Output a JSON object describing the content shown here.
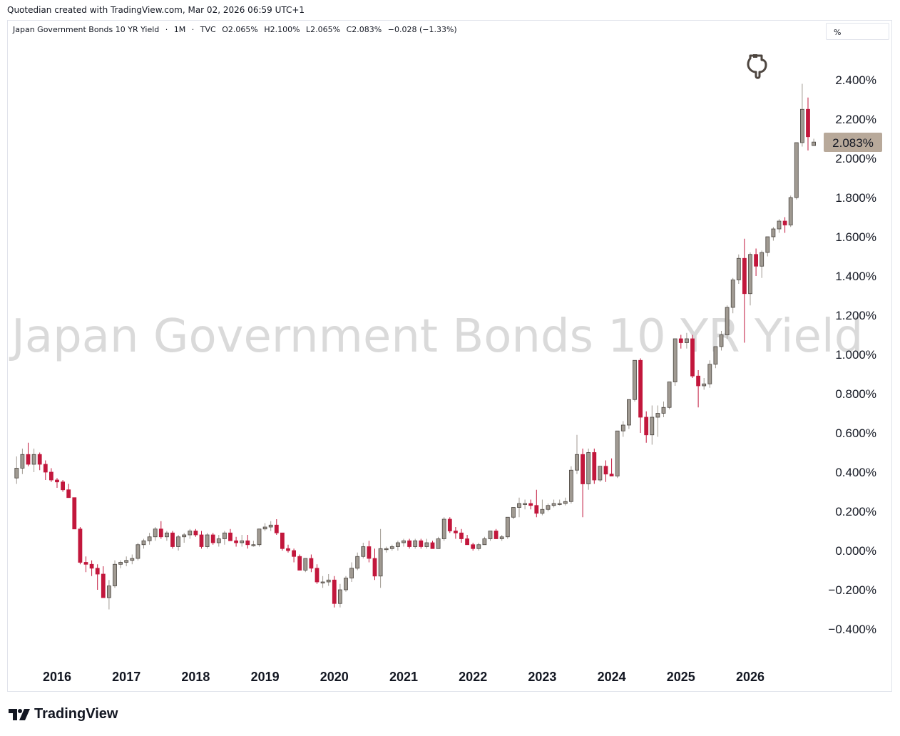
{
  "header": {
    "caption": "Quotedian created with TradingView.com, Mar 02, 2026 06:59 UTC+1"
  },
  "legend": {
    "symbol": "Japan Government Bonds 10 YR Yield",
    "interval": "1M",
    "source": "TVC",
    "open": "O2.065%",
    "high": "H2.100%",
    "low": "L2.065%",
    "close": "C2.083%",
    "change": "−0.028 (−1.33%)"
  },
  "unit_selector": {
    "label": "%"
  },
  "watermark": {
    "text": "Japan Government Bonds 10 YR Yield"
  },
  "price_label": {
    "text": "2.083%",
    "color": "#b8a99a"
  },
  "brand": {
    "name": "TradingView"
  },
  "colors": {
    "up": "#a09a92",
    "down": "#c2173c",
    "axis_text": "#131722"
  },
  "chart_data": {
    "type": "candlestick",
    "title": "Japan Government Bonds 10 YR Yield",
    "interval": "1M",
    "y_unit": "%",
    "ylim": [
      -0.5,
      2.6
    ],
    "y_ticks": [
      -0.4,
      -0.2,
      0.0,
      0.2,
      0.4,
      0.6,
      0.8,
      1.0,
      1.2,
      1.4,
      1.6,
      1.8,
      2.0,
      2.2,
      2.4
    ],
    "y_tick_labels": [
      "−0.400%",
      "−0.200%",
      "0.000%",
      "0.200%",
      "0.400%",
      "0.600%",
      "0.800%",
      "1.000%",
      "1.200%",
      "1.400%",
      "1.600%",
      "1.800%",
      "2.000%",
      "2.200%",
      "2.400%"
    ],
    "x_ticks": [
      "2016",
      "2017",
      "2018",
      "2019",
      "2020",
      "2021",
      "2022",
      "2023",
      "2024",
      "2025",
      "2026"
    ],
    "last_value": 2.083,
    "candles": [
      {
        "d": "2015-06",
        "o": 0.37,
        "h": 0.48,
        "l": 0.34,
        "c": 0.42
      },
      {
        "d": "2015-07",
        "o": 0.42,
        "h": 0.52,
        "l": 0.39,
        "c": 0.49
      },
      {
        "d": "2015-08",
        "o": 0.49,
        "h": 0.55,
        "l": 0.43,
        "c": 0.44
      },
      {
        "d": "2015-09",
        "o": 0.44,
        "h": 0.52,
        "l": 0.4,
        "c": 0.49
      },
      {
        "d": "2015-10",
        "o": 0.49,
        "h": 0.5,
        "l": 0.41,
        "c": 0.44
      },
      {
        "d": "2015-11",
        "o": 0.44,
        "h": 0.46,
        "l": 0.36,
        "c": 0.4
      },
      {
        "d": "2015-12",
        "o": 0.4,
        "h": 0.42,
        "l": 0.35,
        "c": 0.36
      },
      {
        "d": "2016-01",
        "o": 0.36,
        "h": 0.37,
        "l": 0.32,
        "c": 0.35
      },
      {
        "d": "2016-02",
        "o": 0.35,
        "h": 0.36,
        "l": 0.3,
        "c": 0.31
      },
      {
        "d": "2016-03",
        "o": 0.31,
        "h": 0.34,
        "l": 0.27,
        "c": 0.27
      },
      {
        "d": "2016-04",
        "o": 0.27,
        "h": 0.27,
        "l": 0.11,
        "c": 0.11
      },
      {
        "d": "2016-05",
        "o": 0.11,
        "h": 0.12,
        "l": -0.07,
        "c": -0.06
      },
      {
        "d": "2016-06",
        "o": -0.06,
        "h": -0.03,
        "l": -0.11,
        "c": -0.07
      },
      {
        "d": "2016-07",
        "o": -0.07,
        "h": -0.05,
        "l": -0.13,
        "c": -0.09
      },
      {
        "d": "2016-08",
        "o": -0.09,
        "h": -0.07,
        "l": -0.2,
        "c": -0.12
      },
      {
        "d": "2016-09",
        "o": -0.12,
        "h": -0.08,
        "l": -0.24,
        "c": -0.24
      },
      {
        "d": "2016-10",
        "o": -0.24,
        "h": -0.15,
        "l": -0.3,
        "c": -0.18
      },
      {
        "d": "2016-11",
        "o": -0.18,
        "h": -0.05,
        "l": -0.19,
        "c": -0.07
      },
      {
        "d": "2016-12",
        "o": -0.07,
        "h": -0.05,
        "l": -0.09,
        "c": -0.06
      },
      {
        "d": "2017-01",
        "o": -0.06,
        "h": -0.03,
        "l": -0.08,
        "c": -0.05
      },
      {
        "d": "2017-02",
        "o": -0.05,
        "h": -0.02,
        "l": -0.07,
        "c": -0.04
      },
      {
        "d": "2017-03",
        "o": -0.04,
        "h": 0.04,
        "l": -0.05,
        "c": 0.03
      },
      {
        "d": "2017-04",
        "o": 0.03,
        "h": 0.06,
        "l": 0.01,
        "c": 0.05
      },
      {
        "d": "2017-05",
        "o": 0.05,
        "h": 0.09,
        "l": 0.03,
        "c": 0.07
      },
      {
        "d": "2017-06",
        "o": 0.07,
        "h": 0.12,
        "l": 0.05,
        "c": 0.11
      },
      {
        "d": "2017-07",
        "o": 0.11,
        "h": 0.15,
        "l": 0.06,
        "c": 0.07
      },
      {
        "d": "2017-08",
        "o": 0.07,
        "h": 0.1,
        "l": 0.05,
        "c": 0.09
      },
      {
        "d": "2017-09",
        "o": 0.09,
        "h": 0.1,
        "l": 0.01,
        "c": 0.02
      },
      {
        "d": "2017-10",
        "o": 0.02,
        "h": 0.08,
        "l": 0.0,
        "c": 0.07
      },
      {
        "d": "2017-11",
        "o": 0.07,
        "h": 0.09,
        "l": 0.04,
        "c": 0.08
      },
      {
        "d": "2017-12",
        "o": 0.08,
        "h": 0.11,
        "l": 0.06,
        "c": 0.1
      },
      {
        "d": "2018-01",
        "o": 0.1,
        "h": 0.11,
        "l": 0.07,
        "c": 0.08
      },
      {
        "d": "2018-02",
        "o": 0.08,
        "h": 0.1,
        "l": 0.01,
        "c": 0.02
      },
      {
        "d": "2018-03",
        "o": 0.02,
        "h": 0.09,
        "l": 0.01,
        "c": 0.08
      },
      {
        "d": "2018-04",
        "o": 0.08,
        "h": 0.09,
        "l": 0.03,
        "c": 0.04
      },
      {
        "d": "2018-05",
        "o": 0.04,
        "h": 0.08,
        "l": 0.02,
        "c": 0.06
      },
      {
        "d": "2018-06",
        "o": 0.06,
        "h": 0.1,
        "l": 0.03,
        "c": 0.09
      },
      {
        "d": "2018-07",
        "o": 0.09,
        "h": 0.11,
        "l": 0.05,
        "c": 0.05
      },
      {
        "d": "2018-08",
        "o": 0.05,
        "h": 0.07,
        "l": 0.02,
        "c": 0.04
      },
      {
        "d": "2018-09",
        "o": 0.04,
        "h": 0.08,
        "l": 0.02,
        "c": 0.05
      },
      {
        "d": "2018-10",
        "o": 0.05,
        "h": 0.08,
        "l": 0.01,
        "c": 0.03
      },
      {
        "d": "2018-11",
        "o": 0.03,
        "h": 0.05,
        "l": 0.02,
        "c": 0.03
      },
      {
        "d": "2018-12",
        "o": 0.03,
        "h": 0.11,
        "l": 0.02,
        "c": 0.11
      },
      {
        "d": "2019-01",
        "o": 0.11,
        "h": 0.14,
        "l": 0.1,
        "c": 0.12
      },
      {
        "d": "2019-02",
        "o": 0.12,
        "h": 0.15,
        "l": 0.1,
        "c": 0.13
      },
      {
        "d": "2019-03",
        "o": 0.13,
        "h": 0.16,
        "l": 0.08,
        "c": 0.09
      },
      {
        "d": "2019-04",
        "o": 0.09,
        "h": 0.09,
        "l": 0.0,
        "c": 0.01
      },
      {
        "d": "2019-05",
        "o": 0.01,
        "h": 0.03,
        "l": -0.01,
        "c": 0.0
      },
      {
        "d": "2019-06",
        "o": 0.0,
        "h": 0.01,
        "l": -0.06,
        "c": -0.03
      },
      {
        "d": "2019-07",
        "o": -0.03,
        "h": -0.02,
        "l": -0.1,
        "c": -0.1
      },
      {
        "d": "2019-08",
        "o": -0.1,
        "h": -0.04,
        "l": -0.11,
        "c": -0.04
      },
      {
        "d": "2019-09",
        "o": -0.04,
        "h": -0.02,
        "l": -0.11,
        "c": -0.09
      },
      {
        "d": "2019-10",
        "o": -0.09,
        "h": -0.07,
        "l": -0.17,
        "c": -0.16
      },
      {
        "d": "2019-11",
        "o": -0.16,
        "h": -0.13,
        "l": -0.19,
        "c": -0.16
      },
      {
        "d": "2019-12",
        "o": -0.16,
        "h": -0.12,
        "l": -0.18,
        "c": -0.15
      },
      {
        "d": "2020-01",
        "o": -0.15,
        "h": -0.13,
        "l": -0.29,
        "c": -0.27
      },
      {
        "d": "2020-02",
        "o": -0.27,
        "h": -0.17,
        "l": -0.29,
        "c": -0.2
      },
      {
        "d": "2020-03",
        "o": -0.2,
        "h": -0.13,
        "l": -0.21,
        "c": -0.14
      },
      {
        "d": "2020-04",
        "o": -0.14,
        "h": -0.06,
        "l": -0.16,
        "c": -0.09
      },
      {
        "d": "2020-05",
        "o": -0.09,
        "h": -0.01,
        "l": -0.1,
        "c": -0.03
      },
      {
        "d": "2020-06",
        "o": -0.03,
        "h": 0.04,
        "l": -0.04,
        "c": 0.02
      },
      {
        "d": "2020-07",
        "o": 0.02,
        "h": 0.05,
        "l": -0.06,
        "c": -0.04
      },
      {
        "d": "2020-08",
        "o": -0.04,
        "h": 0.01,
        "l": -0.15,
        "c": -0.13
      },
      {
        "d": "2020-09",
        "o": -0.13,
        "h": 0.11,
        "l": -0.19,
        "c": 0.01
      },
      {
        "d": "2020-10",
        "o": 0.01,
        "h": 0.02,
        "l": -0.01,
        "c": 0.01
      },
      {
        "d": "2020-11",
        "o": 0.01,
        "h": 0.03,
        "l": 0.0,
        "c": 0.02
      },
      {
        "d": "2020-12",
        "o": 0.02,
        "h": 0.05,
        "l": 0.0,
        "c": 0.04
      },
      {
        "d": "2021-01",
        "o": 0.04,
        "h": 0.06,
        "l": 0.02,
        "c": 0.05
      },
      {
        "d": "2021-02",
        "o": 0.05,
        "h": 0.06,
        "l": 0.01,
        "c": 0.02
      },
      {
        "d": "2021-03",
        "o": 0.02,
        "h": 0.06,
        "l": 0.01,
        "c": 0.05
      },
      {
        "d": "2021-04",
        "o": 0.05,
        "h": 0.06,
        "l": 0.01,
        "c": 0.02
      },
      {
        "d": "2021-05",
        "o": 0.02,
        "h": 0.06,
        "l": 0.01,
        "c": 0.04
      },
      {
        "d": "2021-06",
        "o": 0.04,
        "h": 0.05,
        "l": 0.01,
        "c": 0.01
      },
      {
        "d": "2021-07",
        "o": 0.01,
        "h": 0.07,
        "l": 0.01,
        "c": 0.06
      },
      {
        "d": "2021-08",
        "o": 0.06,
        "h": 0.17,
        "l": 0.05,
        "c": 0.16
      },
      {
        "d": "2021-09",
        "o": 0.16,
        "h": 0.17,
        "l": 0.09,
        "c": 0.1
      },
      {
        "d": "2021-10",
        "o": 0.1,
        "h": 0.12,
        "l": 0.06,
        "c": 0.09
      },
      {
        "d": "2021-11",
        "o": 0.09,
        "h": 0.11,
        "l": 0.04,
        "c": 0.06
      },
      {
        "d": "2021-12",
        "o": 0.06,
        "h": 0.08,
        "l": 0.03,
        "c": 0.03
      },
      {
        "d": "2022-01",
        "o": 0.03,
        "h": 0.04,
        "l": 0.0,
        "c": 0.01
      },
      {
        "d": "2022-02",
        "o": 0.01,
        "h": 0.04,
        "l": 0.0,
        "c": 0.03
      },
      {
        "d": "2022-03",
        "o": 0.03,
        "h": 0.07,
        "l": 0.03,
        "c": 0.06
      },
      {
        "d": "2022-04",
        "o": 0.06,
        "h": 0.1,
        "l": 0.05,
        "c": 0.1
      },
      {
        "d": "2022-05",
        "o": 0.1,
        "h": 0.11,
        "l": 0.06,
        "c": 0.06
      },
      {
        "d": "2022-06",
        "o": 0.06,
        "h": 0.08,
        "l": 0.05,
        "c": 0.07
      },
      {
        "d": "2022-07",
        "o": 0.07,
        "h": 0.17,
        "l": 0.06,
        "c": 0.17
      },
      {
        "d": "2022-08",
        "o": 0.17,
        "h": 0.22,
        "l": 0.16,
        "c": 0.22
      },
      {
        "d": "2022-09",
        "o": 0.22,
        "h": 0.27,
        "l": 0.17,
        "c": 0.24
      },
      {
        "d": "2022-10",
        "o": 0.24,
        "h": 0.26,
        "l": 0.21,
        "c": 0.24
      },
      {
        "d": "2022-11",
        "o": 0.24,
        "h": 0.26,
        "l": 0.21,
        "c": 0.23
      },
      {
        "d": "2022-12",
        "o": 0.23,
        "h": 0.31,
        "l": 0.17,
        "c": 0.19
      },
      {
        "d": "2023-01",
        "o": 0.19,
        "h": 0.26,
        "l": 0.18,
        "c": 0.21
      },
      {
        "d": "2023-02",
        "o": 0.21,
        "h": 0.24,
        "l": 0.2,
        "c": 0.23
      },
      {
        "d": "2023-03",
        "o": 0.23,
        "h": 0.26,
        "l": 0.22,
        "c": 0.24
      },
      {
        "d": "2023-04",
        "o": 0.24,
        "h": 0.26,
        "l": 0.23,
        "c": 0.24
      },
      {
        "d": "2023-05",
        "o": 0.24,
        "h": 0.27,
        "l": 0.23,
        "c": 0.25
      },
      {
        "d": "2023-06",
        "o": 0.25,
        "h": 0.43,
        "l": 0.24,
        "c": 0.41
      },
      {
        "d": "2023-07",
        "o": 0.41,
        "h": 0.59,
        "l": 0.39,
        "c": 0.49
      },
      {
        "d": "2023-08",
        "o": 0.49,
        "h": 0.52,
        "l": 0.17,
        "c": 0.34
      },
      {
        "d": "2023-09",
        "o": 0.34,
        "h": 0.52,
        "l": 0.31,
        "c": 0.5
      },
      {
        "d": "2023-10",
        "o": 0.5,
        "h": 0.52,
        "l": 0.34,
        "c": 0.36
      },
      {
        "d": "2023-11",
        "o": 0.36,
        "h": 0.43,
        "l": 0.35,
        "c": 0.43
      },
      {
        "d": "2023-12",
        "o": 0.43,
        "h": 0.46,
        "l": 0.35,
        "c": 0.39
      },
      {
        "d": "2024-01",
        "o": 0.39,
        "h": 0.47,
        "l": 0.38,
        "c": 0.38
      },
      {
        "d": "2024-02",
        "o": 0.38,
        "h": 0.61,
        "l": 0.37,
        "c": 0.61
      },
      {
        "d": "2024-03",
        "o": 0.61,
        "h": 0.66,
        "l": 0.58,
        "c": 0.64
      },
      {
        "d": "2024-04",
        "o": 0.64,
        "h": 0.77,
        "l": 0.62,
        "c": 0.77
      },
      {
        "d": "2024-05",
        "o": 0.77,
        "h": 0.97,
        "l": 0.76,
        "c": 0.97
      },
      {
        "d": "2024-06",
        "o": 0.97,
        "h": 0.98,
        "l": 0.6,
        "c": 0.68
      },
      {
        "d": "2024-07",
        "o": 0.68,
        "h": 0.71,
        "l": 0.55,
        "c": 0.59
      },
      {
        "d": "2024-08",
        "o": 0.59,
        "h": 0.74,
        "l": 0.54,
        "c": 0.68
      },
      {
        "d": "2024-09",
        "o": 0.68,
        "h": 0.74,
        "l": 0.58,
        "c": 0.7
      },
      {
        "d": "2024-10",
        "o": 0.7,
        "h": 0.76,
        "l": 0.68,
        "c": 0.73
      },
      {
        "d": "2024-11",
        "o": 0.73,
        "h": 0.86,
        "l": 0.72,
        "c": 0.86
      },
      {
        "d": "2024-12",
        "o": 0.86,
        "h": 1.08,
        "l": 0.84,
        "c": 1.08
      },
      {
        "d": "2025-01",
        "o": 1.08,
        "h": 1.1,
        "l": 1.03,
        "c": 1.06
      },
      {
        "d": "2025-02",
        "o": 1.06,
        "h": 1.11,
        "l": 1.03,
        "c": 1.08
      },
      {
        "d": "2025-03",
        "o": 1.08,
        "h": 1.1,
        "l": 0.88,
        "c": 0.89
      },
      {
        "d": "2025-04",
        "o": 0.89,
        "h": 0.92,
        "l": 0.73,
        "c": 0.84
      },
      {
        "d": "2025-05",
        "o": 0.84,
        "h": 0.88,
        "l": 0.82,
        "c": 0.85
      },
      {
        "d": "2025-06",
        "o": 0.85,
        "h": 0.97,
        "l": 0.83,
        "c": 0.95
      },
      {
        "d": "2025-07",
        "o": 0.95,
        "h": 1.04,
        "l": 0.93,
        "c": 1.04
      },
      {
        "d": "2025-08",
        "o": 1.04,
        "h": 1.12,
        "l": 1.02,
        "c": 1.1
      },
      {
        "d": "2025-09",
        "o": 1.1,
        "h": 1.25,
        "l": 1.08,
        "c": 1.24
      },
      {
        "d": "2025-10",
        "o": 1.24,
        "h": 1.39,
        "l": 1.21,
        "c": 1.38
      },
      {
        "d": "2025-11",
        "o": 1.38,
        "h": 1.51,
        "l": 1.36,
        "c": 1.49
      },
      {
        "d": "2025-12",
        "o": 1.49,
        "h": 1.59,
        "l": 1.06,
        "c": 1.31
      },
      {
        "d": "2026-01",
        "o": 1.31,
        "h": 1.52,
        "l": 1.25,
        "c": 1.51
      },
      {
        "d": "2026-02",
        "o": 1.51,
        "h": 1.54,
        "l": 1.4,
        "c": 1.45
      },
      {
        "d": "2026-03",
        "o": 1.45,
        "h": 1.53,
        "l": 1.39,
        "c": 1.52
      },
      {
        "d": "2026-04",
        "o": 1.52,
        "h": 1.6,
        "l": 1.5,
        "c": 1.6
      },
      {
        "d": "2026-05",
        "o": 1.6,
        "h": 1.65,
        "l": 1.58,
        "c": 1.64
      },
      {
        "d": "2026-06",
        "o": 1.64,
        "h": 1.69,
        "l": 1.62,
        "c": 1.68
      },
      {
        "d": "2026-07",
        "o": 1.68,
        "h": 1.7,
        "l": 1.62,
        "c": 1.66
      },
      {
        "d": "2026-08",
        "o": 1.66,
        "h": 1.81,
        "l": 1.65,
        "c": 1.8
      },
      {
        "d": "2026-09",
        "o": 1.8,
        "h": 2.08,
        "l": 1.79,
        "c": 2.08
      },
      {
        "d": "2026-10",
        "o": 2.08,
        "h": 2.38,
        "l": 2.06,
        "c": 2.25
      },
      {
        "d": "2026-11",
        "o": 2.25,
        "h": 2.31,
        "l": 2.04,
        "c": 2.11
      },
      {
        "d": "2026-12",
        "o": 2.065,
        "h": 2.1,
        "l": 2.065,
        "c": 2.083
      }
    ]
  }
}
